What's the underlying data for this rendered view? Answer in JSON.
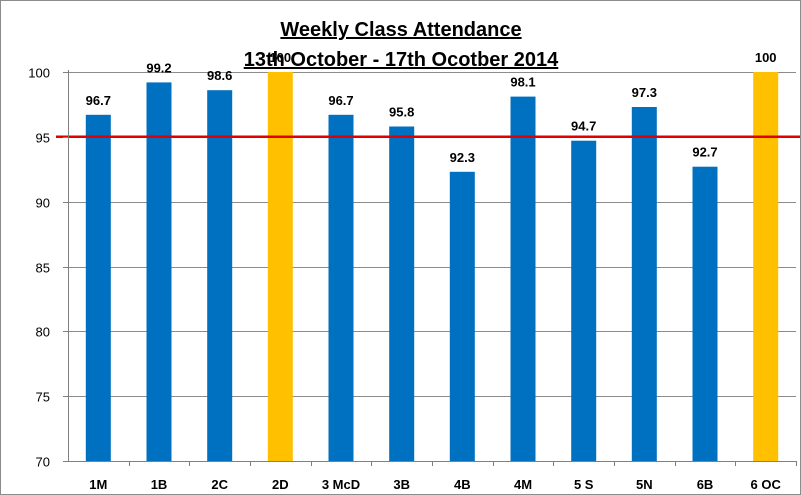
{
  "chart_data": {
    "type": "bar",
    "title": "Weekly Class Attendance",
    "subtitle": "13th October - 17th Ocotber 2014",
    "categories": [
      "1M",
      "1B",
      "2C",
      "2D",
      "3 McD",
      "3B",
      "4B",
      "4M",
      "5 S",
      "5N",
      "6B",
      "6 OC"
    ],
    "values": [
      96.7,
      99.2,
      98.6,
      100,
      96.7,
      95.8,
      92.3,
      98.1,
      94.7,
      97.3,
      92.7,
      100
    ],
    "data_labels": [
      "96.7",
      "99.2",
      "98.6",
      "100",
      "96.7",
      "95.8",
      "92.3",
      "98.1",
      "94.7",
      "97.3",
      "92.7",
      "100"
    ],
    "highlight_categories": [
      "2D",
      "6 OC"
    ],
    "ylim": [
      70,
      100
    ],
    "yticks": [
      70,
      75,
      80,
      85,
      90,
      95,
      100
    ],
    "target_line": 95,
    "grid": true,
    "legend": "none",
    "colors": {
      "bar": "#0070c0",
      "highlight_bar": "#ffc000",
      "target_line": "#e00000",
      "grid": "#8c8c8c"
    }
  }
}
